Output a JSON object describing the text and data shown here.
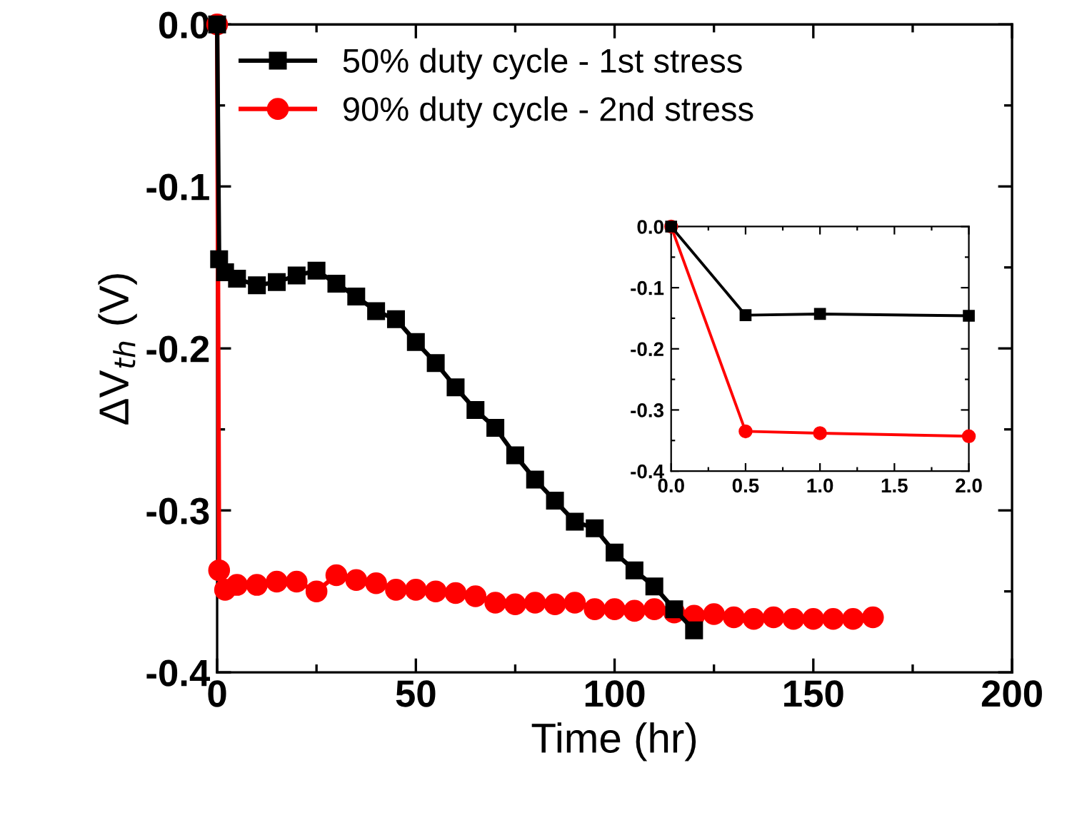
{
  "chart_data": [
    {
      "type": "line",
      "xlabel": "Time (hr)",
      "ylabel": "ΔV$_{th}$ (V)",
      "xlim": [
        0,
        200
      ],
      "xticks": [
        0,
        50,
        100,
        150,
        200
      ],
      "ylim": [
        -0.4,
        0.0
      ],
      "yticks": [
        -0.4,
        -0.3,
        -0.2,
        -0.1,
        {
          "value": 0,
          "label": "0.0"
        }
      ],
      "legend": "top left",
      "grid": false,
      "series": [
        {
          "name": "50% duty cycle - 1st stress",
          "color": "#000000",
          "marker": "square",
          "x": [
            0,
            0.5,
            2,
            5,
            10,
            15,
            20,
            25,
            30,
            35,
            40,
            45,
            50,
            55,
            60,
            65,
            70,
            75,
            80,
            85,
            90,
            95,
            100,
            105,
            110,
            115,
            120
          ],
          "values": [
            0,
            -0.145,
            -0.153,
            -0.157,
            -0.161,
            -0.159,
            -0.155,
            -0.152,
            -0.16,
            -0.168,
            -0.177,
            -0.182,
            -0.196,
            -0.209,
            -0.224,
            -0.238,
            -0.249,
            -0.266,
            -0.281,
            -0.294,
            -0.307,
            -0.311,
            -0.326,
            -0.337,
            -0.347,
            -0.361,
            -0.374
          ]
        },
        {
          "name": "90% duty cycle - 2nd stress",
          "color": "#ff0000",
          "marker": "circle",
          "x": [
            0,
            0.5,
            2,
            5,
            10,
            15,
            20,
            25,
            30,
            35,
            40,
            45,
            50,
            55,
            60,
            65,
            70,
            75,
            80,
            85,
            90,
            95,
            100,
            105,
            110,
            115,
            120,
            125,
            130,
            135,
            140,
            145,
            150,
            155,
            160,
            165
          ],
          "values": [
            0,
            -0.337,
            -0.349,
            -0.346,
            -0.346,
            -0.344,
            -0.344,
            -0.35,
            -0.34,
            -0.343,
            -0.345,
            -0.349,
            -0.349,
            -0.35,
            -0.351,
            -0.353,
            -0.357,
            -0.358,
            -0.357,
            -0.358,
            -0.357,
            -0.361,
            -0.361,
            -0.362,
            -0.361,
            -0.363,
            -0.365,
            -0.364,
            -0.366,
            -0.367,
            -0.366,
            -0.367,
            -0.367,
            -0.367,
            -0.367,
            -0.366
          ]
        }
      ]
    },
    {
      "type": "line",
      "xlim": [
        0.0,
        2.0
      ],
      "xticks": [
        {
          "value": 0,
          "label": "0.0"
        },
        0.5,
        {
          "value": 1,
          "label": "1.0"
        },
        1.5,
        {
          "value": 2,
          "label": "2.0"
        }
      ],
      "ylim": [
        -0.4,
        0.0
      ],
      "yticks": [
        -0.4,
        -0.3,
        -0.2,
        -0.1,
        {
          "value": 0,
          "label": "0.0"
        }
      ],
      "grid": false,
      "series": [
        {
          "color": "#000000",
          "marker": "square",
          "x": [
            0,
            0.5,
            1,
            2
          ],
          "values": [
            0,
            -0.145,
            -0.143,
            -0.146
          ]
        },
        {
          "color": "#ff0000",
          "marker": "circle",
          "x": [
            0,
            0.5,
            1,
            2
          ],
          "values": [
            0,
            -0.335,
            -0.338,
            -0.343
          ]
        }
      ]
    }
  ]
}
